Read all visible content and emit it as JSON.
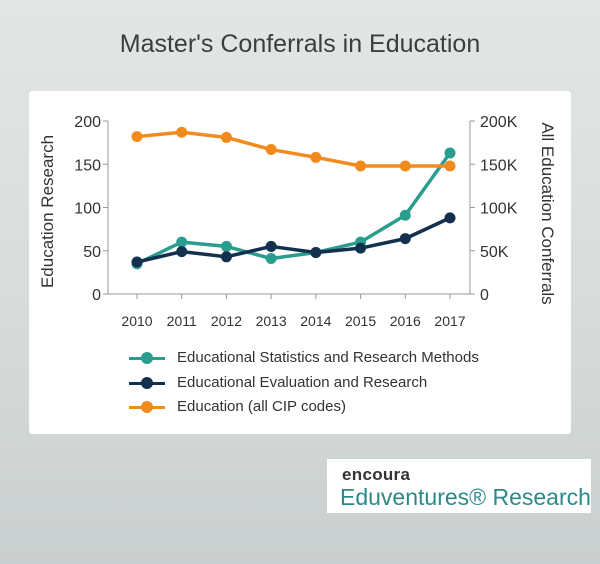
{
  "page": {
    "title": "Master's Conferrals in Education"
  },
  "brand": {
    "line1": "encoura",
    "line2": "Eduventures® Research"
  },
  "chart_data": {
    "type": "line",
    "title": "Master's Conferrals in Education",
    "x": [
      "2010",
      "2011",
      "2012",
      "2013",
      "2014",
      "2015",
      "2016",
      "2017"
    ],
    "ylabel": "Education Research",
    "y2label": "All Education Conferrals",
    "ylim": [
      0,
      200
    ],
    "y2lim": [
      0,
      200000
    ],
    "yticks": [
      "0",
      "50",
      "100",
      "150",
      "200"
    ],
    "y2ticks": [
      "0",
      "50K",
      "100K",
      "150K",
      "200K"
    ],
    "grid": false,
    "legend_position": "bottom",
    "series": [
      {
        "name": "Educational Statistics and Research Methods",
        "axis": "left",
        "color": "#2a9d8f",
        "values": [
          35,
          60,
          55,
          41,
          48,
          60,
          91,
          163
        ]
      },
      {
        "name": "Educational Evaluation and Research",
        "axis": "left",
        "color": "#14304f",
        "values": [
          37,
          49,
          43,
          55,
          48,
          53,
          64,
          88
        ]
      },
      {
        "name": "Education (all CIP codes)",
        "axis": "right",
        "color": "#f28a1e",
        "values": [
          182000,
          187000,
          181000,
          167000,
          158000,
          148000,
          148000,
          148000
        ]
      }
    ]
  }
}
